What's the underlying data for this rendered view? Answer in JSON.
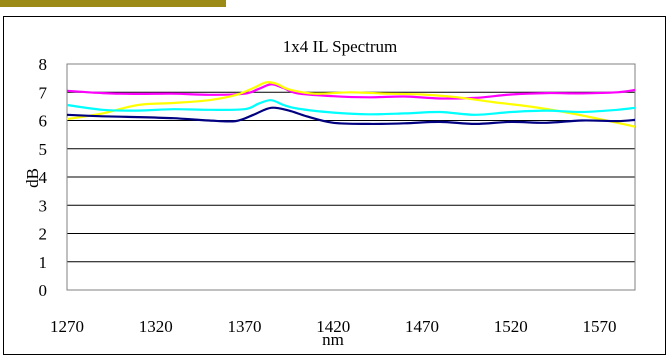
{
  "chart_data": {
    "type": "line",
    "title": "1x4 IL Spectrum",
    "xlabel": "nm",
    "ylabel": "dB",
    "xlim": [
      1270,
      1590
    ],
    "ylim": [
      0,
      8
    ],
    "xticks": [
      1270,
      1320,
      1370,
      1420,
      1470,
      1520,
      1570
    ],
    "yticks": [
      0,
      1,
      2,
      3,
      4,
      5,
      6,
      7,
      8
    ],
    "grid": "horizontal",
    "legend": "none",
    "series": [
      {
        "color": "#ff00ff",
        "x": [
          1270,
          1290,
          1310,
          1330,
          1350,
          1370,
          1378,
          1385,
          1392,
          1400,
          1420,
          1440,
          1460,
          1480,
          1500,
          1520,
          1540,
          1560,
          1580,
          1590
        ],
        "y": [
          7.05,
          6.97,
          6.94,
          6.95,
          6.91,
          6.95,
          7.12,
          7.28,
          7.15,
          6.96,
          6.86,
          6.82,
          6.85,
          6.78,
          6.8,
          6.92,
          6.97,
          6.96,
          7.0,
          7.08
        ]
      },
      {
        "color": "#ffff00",
        "x": [
          1270,
          1290,
          1310,
          1330,
          1350,
          1365,
          1375,
          1382,
          1388,
          1395,
          1410,
          1430,
          1450,
          1470,
          1490,
          1510,
          1530,
          1550,
          1570,
          1590
        ],
        "y": [
          6.05,
          6.25,
          6.55,
          6.62,
          6.72,
          6.9,
          7.15,
          7.35,
          7.3,
          7.1,
          6.95,
          7.0,
          6.95,
          6.92,
          6.82,
          6.65,
          6.5,
          6.3,
          6.05,
          5.78
        ]
      },
      {
        "color": "#00ffff",
        "x": [
          1270,
          1290,
          1310,
          1330,
          1350,
          1370,
          1378,
          1385,
          1392,
          1400,
          1420,
          1440,
          1460,
          1480,
          1500,
          1520,
          1540,
          1560,
          1580,
          1590
        ],
        "y": [
          6.55,
          6.38,
          6.35,
          6.4,
          6.38,
          6.4,
          6.6,
          6.72,
          6.55,
          6.42,
          6.28,
          6.22,
          6.25,
          6.3,
          6.2,
          6.3,
          6.35,
          6.3,
          6.38,
          6.45
        ]
      },
      {
        "color": "#000080",
        "x": [
          1270,
          1290,
          1310,
          1330,
          1350,
          1365,
          1375,
          1385,
          1395,
          1405,
          1420,
          1440,
          1460,
          1480,
          1500,
          1520,
          1540,
          1560,
          1580,
          1590
        ],
        "y": [
          6.2,
          6.15,
          6.12,
          6.08,
          6.0,
          5.98,
          6.2,
          6.45,
          6.35,
          6.15,
          5.92,
          5.88,
          5.9,
          5.95,
          5.88,
          5.95,
          5.92,
          6.0,
          5.98,
          6.02
        ]
      }
    ]
  }
}
